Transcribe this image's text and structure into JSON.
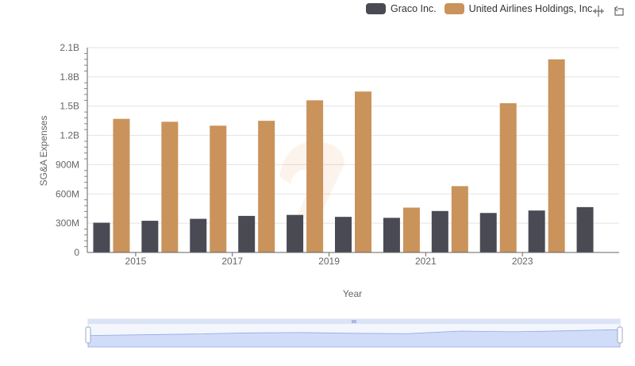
{
  "legend": {
    "items": [
      {
        "name": "Graco Inc.",
        "color": "#4a4a55"
      },
      {
        "name": "United Airlines Holdings, Inc.",
        "color": "#c9935b"
      }
    ]
  },
  "toolbox": {
    "icons": [
      "zoom-icon",
      "restore-icon"
    ]
  },
  "chart_data": {
    "type": "bar",
    "xlabel": "Year",
    "ylabel": "SG&A Expenses",
    "categories": [
      "2014",
      "2015",
      "2016",
      "2017",
      "2018",
      "2019",
      "2020",
      "2021",
      "2022",
      "2023",
      "2024"
    ],
    "x_tick_labels": [
      "2015",
      "2017",
      "2019",
      "2021",
      "2023"
    ],
    "y_ticks": [
      0,
      300000000,
      600000000,
      900000000,
      1200000000,
      1500000000,
      1800000000,
      2100000000
    ],
    "y_tick_labels": [
      "0",
      "300M",
      "600M",
      "900M",
      "1.2B",
      "1.5B",
      "1.8B",
      "2.1B"
    ],
    "ylim": [
      0,
      2100000000
    ],
    "series": [
      {
        "name": "Graco Inc.",
        "color": "#4a4a55",
        "values": [
          305000000,
          325000000,
          345000000,
          375000000,
          385000000,
          365000000,
          355000000,
          425000000,
          405000000,
          430000000,
          465000000
        ]
      },
      {
        "name": "United Airlines Holdings, Inc.",
        "color": "#c9935b",
        "values": [
          1370000000,
          1340000000,
          1300000000,
          1350000000,
          1560000000,
          1650000000,
          460000000,
          680000000,
          1530000000,
          1980000000,
          null
        ]
      }
    ],
    "grid": true,
    "legend_position": "top-right",
    "datazoom": {
      "start": 0,
      "end": 100
    }
  }
}
